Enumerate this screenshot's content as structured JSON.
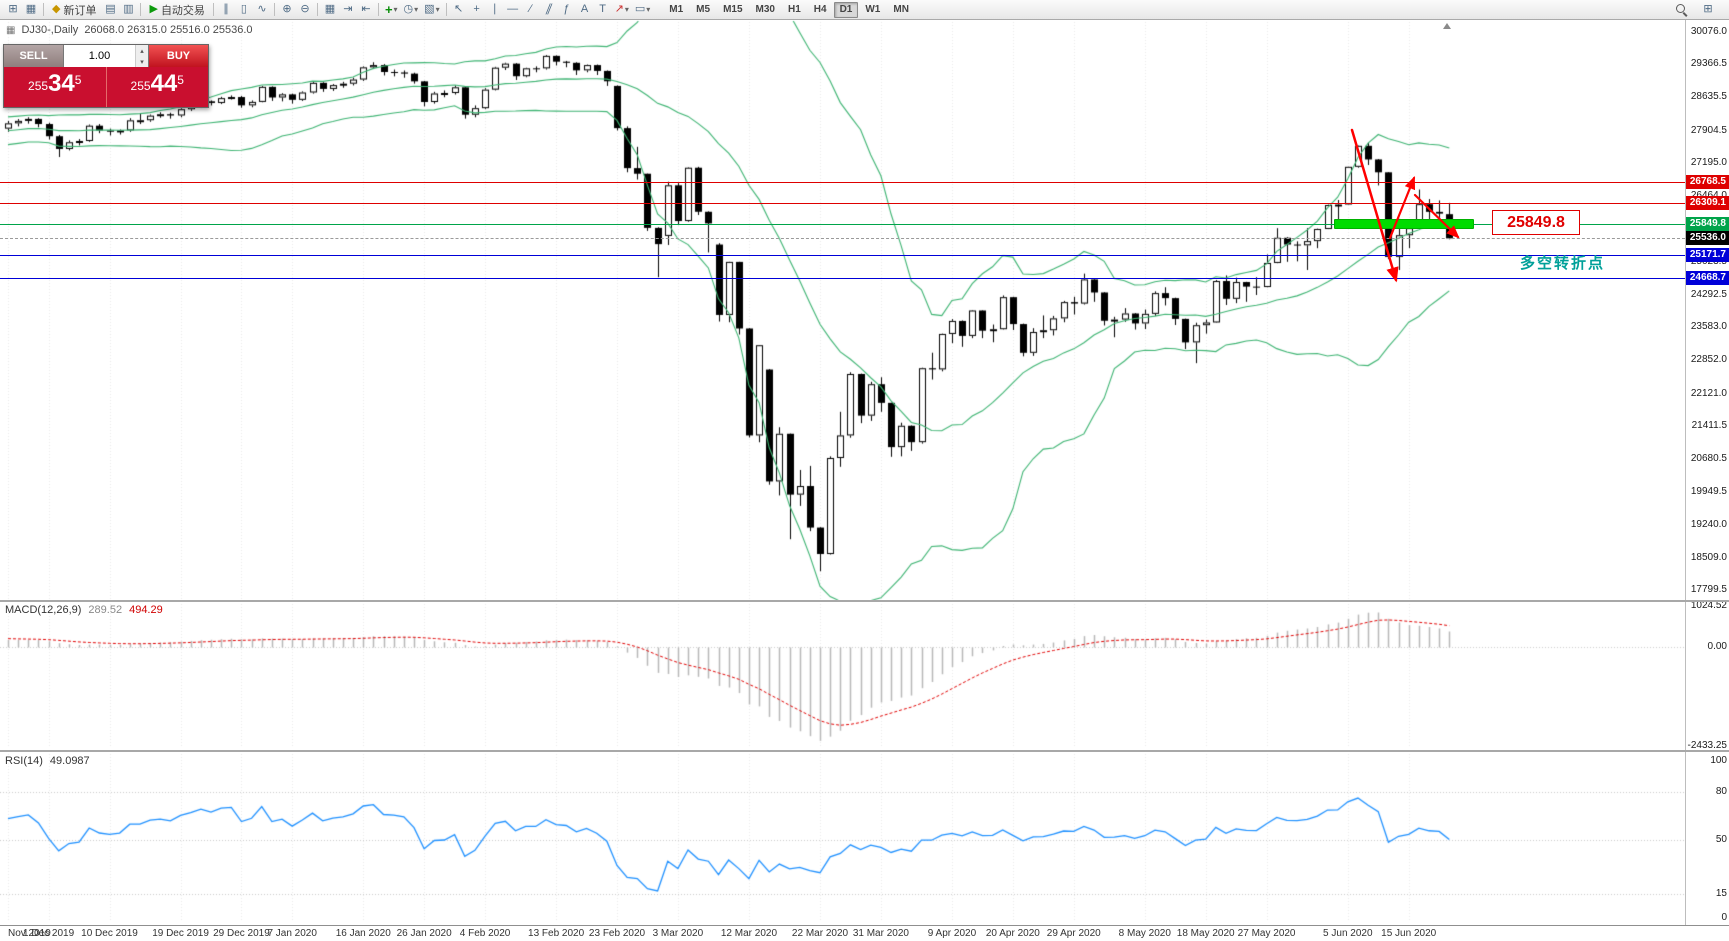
{
  "toolbar": {
    "new_order_label": "新订单",
    "auto_trading_label": "自动交易",
    "timeframes": [
      "M1",
      "M5",
      "M15",
      "M30",
      "H1",
      "H4",
      "D1",
      "W1",
      "MN"
    ],
    "active_timeframe": "D1"
  },
  "icons": {
    "new_chart": "⊞",
    "profiles": "▦",
    "diamond": "◆",
    "market_watch": "▤",
    "terminal": "▥",
    "play": "▶",
    "bar_chart": "∥",
    "candles": "▯",
    "line_chart": "∿",
    "zoom_in": "⊕",
    "zoom_out": "⊖",
    "tile_windows": "▦",
    "auto_scroll": "⇥",
    "chart_shift": "⇤",
    "plus": "+",
    "clock": "◷",
    "template": "▧",
    "cursor": "↖",
    "crosshair": "+",
    "vertical_line": "∣",
    "horizontal_line": "―",
    "trendline": "∕",
    "channel": "∥",
    "fibonacci": "ƒ",
    "text": "A",
    "text_label": "T",
    "arrow": "↗",
    "caret": "▾",
    "shapes": "▭",
    "new_window": "⊞"
  },
  "chart": {
    "symbol_period": "DJ30-,Daily",
    "ohlc_line": "26068.0 26315.0 25516.0 25536.0",
    "annotation": {
      "text": "多空转折点",
      "color": "#00A099"
    },
    "highlight": {
      "label": "25849.8",
      "price": 25849.8,
      "from_index": 131,
      "to_index": 144,
      "bar_color": "#00DC00",
      "label_color": "#E00000"
    },
    "levels": [
      {
        "price": 26768.5,
        "label": "26768.5",
        "color": "#DE0000"
      },
      {
        "price": 26309.1,
        "label": "26309.1",
        "color": "#DE0000"
      },
      {
        "price": 25849.8,
        "label": "25849.8",
        "color": "#00A44A"
      },
      {
        "price": 25171.7,
        "label": "25171.7",
        "color": "#0000D8"
      },
      {
        "price": 24668.7,
        "label": "24668.7",
        "color": "#0000D8"
      }
    ],
    "current_price": {
      "price": 25536.0,
      "label": "25536.0",
      "badge_color": "#000000"
    }
  },
  "trade_panel": {
    "sell_label": "SELL",
    "buy_label": "BUY",
    "volume": "1.00",
    "sell_price": {
      "prefix": "255",
      "big": "34",
      "pip": "5"
    },
    "buy_price": {
      "prefix": "255",
      "big": "44",
      "pip": "5"
    }
  },
  "chart_data": {
    "type": "candlestick",
    "title": "DJ30-,Daily",
    "y_axis_labels": [
      "30076.0",
      "29366.5",
      "28635.5",
      "27904.5",
      "27195.0",
      "26464.0",
      "25754.5",
      "25023.5",
      "24292.5",
      "23583.0",
      "22852.0",
      "22121.0",
      "21411.5",
      "20680.5",
      "19949.5",
      "19240.0",
      "18509.0",
      "17799.5"
    ],
    "x_labels": [
      {
        "text": "Nov 2019",
        "i": 0
      },
      {
        "text": "1 Dec 2019",
        "i": 4
      },
      {
        "text": "10 Dec 2019",
        "i": 10
      },
      {
        "text": "19 Dec 2019",
        "i": 17
      },
      {
        "text": "29 Dec 2019",
        "i": 23
      },
      {
        "text": "7 Jan 2020",
        "i": 28
      },
      {
        "text": "16 Jan 2020",
        "i": 35
      },
      {
        "text": "26 Jan 2020",
        "i": 41
      },
      {
        "text": "4 Feb 2020",
        "i": 47
      },
      {
        "text": "13 Feb 2020",
        "i": 54
      },
      {
        "text": "23 Feb 2020",
        "i": 60
      },
      {
        "text": "3 Mar 2020",
        "i": 66
      },
      {
        "text": "12 Mar 2020",
        "i": 73
      },
      {
        "text": "22 Mar 2020",
        "i": 80
      },
      {
        "text": "31 Mar 2020",
        "i": 86
      },
      {
        "text": "9 Apr 2020",
        "i": 93
      },
      {
        "text": "20 Apr 2020",
        "i": 99
      },
      {
        "text": "29 Apr 2020",
        "i": 105
      },
      {
        "text": "8 May 2020",
        "i": 112
      },
      {
        "text": "18 May 2020",
        "i": 118
      },
      {
        "text": "27 May 2020",
        "i": 124
      },
      {
        "text": "5 Jun 2020",
        "i": 132
      },
      {
        "text": "15 Jun 2020",
        "i": 138
      }
    ],
    "warmup_closes": [
      26573,
      26788,
      26808,
      26820,
      26901,
      27025,
      27186,
      27024,
      26807,
      27001,
      27071,
      26787,
      27046,
      27110,
      26833,
      27347,
      27462,
      27492,
      27783,
      27675,
      27674,
      28004,
      28090,
      28109,
      27681,
      27691,
      27783,
      27821,
      27934,
      28005,
      28036,
      28067,
      28121,
      27822,
      27766,
      27876,
      27897,
      27950
    ],
    "candles": [
      [
        27950,
        28120,
        27880,
        28066
      ],
      [
        28066,
        28160,
        28000,
        28121
      ],
      [
        28121,
        28200,
        28060,
        28164
      ],
      [
        28164,
        28180,
        27980,
        28051
      ],
      [
        28051,
        28080,
        27710,
        27783
      ],
      [
        27783,
        27810,
        27325,
        27503
      ],
      [
        27503,
        27690,
        27470,
        27650
      ],
      [
        27650,
        27720,
        27580,
        27678
      ],
      [
        27678,
        28040,
        27660,
        28015
      ],
      [
        28015,
        28050,
        27850,
        27910
      ],
      [
        27910,
        27950,
        27800,
        27882
      ],
      [
        27882,
        27930,
        27820,
        27911
      ],
      [
        27911,
        28180,
        27880,
        28132
      ],
      [
        28132,
        28290,
        28050,
        28135
      ],
      [
        28135,
        28260,
        28100,
        28236
      ],
      [
        28236,
        28310,
        28190,
        28267
      ],
      [
        28267,
        28300,
        28170,
        28239
      ],
      [
        28239,
        28400,
        28200,
        28377
      ],
      [
        28377,
        28480,
        28340,
        28455
      ],
      [
        28455,
        28580,
        28420,
        28551
      ],
      [
        28551,
        28570,
        28460,
        28515
      ],
      [
        28515,
        28650,
        28490,
        28621
      ],
      [
        28621,
        28680,
        28590,
        28645
      ],
      [
        28645,
        28670,
        28410,
        28462
      ],
      [
        28462,
        28570,
        28420,
        28538
      ],
      [
        28538,
        28890,
        28530,
        28869
      ],
      [
        28869,
        28880,
        28560,
        28635
      ],
      [
        28635,
        28730,
        28550,
        28704
      ],
      [
        28704,
        28720,
        28500,
        28584
      ],
      [
        28584,
        28770,
        28560,
        28745
      ],
      [
        28745,
        28980,
        28720,
        28957
      ],
      [
        28957,
        28970,
        28760,
        28824
      ],
      [
        28824,
        28930,
        28780,
        28907
      ],
      [
        28907,
        28980,
        28850,
        28939
      ],
      [
        28939,
        29070,
        28900,
        29030
      ],
      [
        29030,
        29320,
        29000,
        29298
      ],
      [
        29298,
        29410,
        29260,
        29348
      ],
      [
        29348,
        29370,
        29120,
        29196
      ],
      [
        29196,
        29250,
        29100,
        29186
      ],
      [
        29186,
        29230,
        29070,
        29160
      ],
      [
        29160,
        29180,
        28940,
        28990
      ],
      [
        28990,
        29000,
        28440,
        28536
      ],
      [
        28536,
        28760,
        28500,
        28723
      ],
      [
        28723,
        28790,
        28640,
        28734
      ],
      [
        28734,
        28900,
        28700,
        28859
      ],
      [
        28859,
        28860,
        28170,
        28256
      ],
      [
        28256,
        28460,
        28200,
        28400
      ],
      [
        28400,
        28840,
        28380,
        28808
      ],
      [
        28808,
        29310,
        28790,
        29291
      ],
      [
        29291,
        29400,
        29240,
        29380
      ],
      [
        29380,
        29390,
        29020,
        29103
      ],
      [
        29103,
        29290,
        29080,
        29277
      ],
      [
        29277,
        29320,
        29190,
        29276
      ],
      [
        29276,
        29570,
        29250,
        29551
      ],
      [
        29551,
        29560,
        29340,
        29423
      ],
      [
        29423,
        29440,
        29300,
        29398
      ],
      [
        29398,
        29410,
        29130,
        29232
      ],
      [
        29232,
        29360,
        29190,
        29348
      ],
      [
        29348,
        29360,
        29130,
        29220
      ],
      [
        29220,
        29230,
        28890,
        28992
      ],
      [
        28890,
        28900,
        27910,
        27961
      ],
      [
        27961,
        28000,
        26990,
        27081
      ],
      [
        27081,
        27550,
        26830,
        26958
      ],
      [
        26958,
        26960,
        25700,
        25766
      ],
      [
        25766,
        25780,
        24681,
        25409
      ],
      [
        25590,
        26780,
        25390,
        26703
      ],
      [
        26703,
        26760,
        25830,
        25917
      ],
      [
        25917,
        27100,
        25900,
        27090
      ],
      [
        27090,
        27110,
        26050,
        26121
      ],
      [
        26121,
        26130,
        25226,
        25864
      ],
      [
        25400,
        25430,
        23706,
        23851
      ],
      [
        23851,
        25020,
        23690,
        25018
      ],
      [
        25018,
        25020,
        23420,
        23553
      ],
      [
        23553,
        23560,
        21154,
        21200
      ],
      [
        21200,
        23190,
        21050,
        23185
      ],
      [
        22650,
        22660,
        20116,
        20188
      ],
      [
        20188,
        21380,
        19880,
        21237
      ],
      [
        21237,
        21240,
        18917,
        19898
      ],
      [
        19898,
        20440,
        19650,
        20087
      ],
      [
        20087,
        20530,
        19094,
        19173
      ],
      [
        19173,
        19180,
        18213,
        18591
      ],
      [
        18591,
        20740,
        18580,
        20704
      ],
      [
        20704,
        21720,
        20510,
        21200
      ],
      [
        21200,
        22590,
        21150,
        22552
      ],
      [
        22552,
        22560,
        21470,
        21636
      ],
      [
        21636,
        22380,
        21520,
        22327
      ],
      [
        22327,
        22480,
        21720,
        21917
      ],
      [
        21917,
        21920,
        20730,
        20943
      ],
      [
        20943,
        21480,
        20740,
        21413
      ],
      [
        21413,
        21420,
        20860,
        21052
      ],
      [
        21052,
        22690,
        21020,
        22679
      ],
      [
        22679,
        23020,
        22430,
        22653
      ],
      [
        22653,
        23440,
        22610,
        23433
      ],
      [
        23433,
        23760,
        23230,
        23719
      ],
      [
        23719,
        23730,
        23150,
        23390
      ],
      [
        23390,
        23960,
        23340,
        23949
      ],
      [
        23949,
        23950,
        23340,
        23504
      ],
      [
        23504,
        23640,
        23250,
        23537
      ],
      [
        23537,
        24280,
        23530,
        24242
      ],
      [
        24242,
        24250,
        23520,
        23650
      ],
      [
        23650,
        23660,
        22940,
        23018
      ],
      [
        23018,
        23560,
        22950,
        23475
      ],
      [
        23475,
        23840,
        23340,
        23515
      ],
      [
        23515,
        23830,
        23400,
        23775
      ],
      [
        23775,
        24160,
        23690,
        24133
      ],
      [
        24133,
        24250,
        23860,
        24101
      ],
      [
        24101,
        24760,
        24080,
        24633
      ],
      [
        24633,
        24640,
        24140,
        24345
      ],
      [
        24345,
        24350,
        23620,
        23723
      ],
      [
        23723,
        23810,
        23360,
        23749
      ],
      [
        23749,
        24000,
        23700,
        23883
      ],
      [
        23883,
        23890,
        23530,
        23664
      ],
      [
        23664,
        23970,
        23540,
        23875
      ],
      [
        23875,
        24370,
        23830,
        24331
      ],
      [
        24331,
        24460,
        24060,
        24221
      ],
      [
        24221,
        24230,
        23630,
        23764
      ],
      [
        23764,
        23770,
        23100,
        23247
      ],
      [
        23247,
        23680,
        22790,
        23625
      ],
      [
        23625,
        23750,
        23440,
        23685
      ],
      [
        23685,
        24620,
        23680,
        24597
      ],
      [
        24597,
        24720,
        24070,
        24206
      ],
      [
        24206,
        24670,
        24110,
        24575
      ],
      [
        24575,
        24580,
        24140,
        24474
      ],
      [
        24474,
        24680,
        24290,
        24465
      ],
      [
        24465,
        25180,
        24460,
        24995
      ],
      [
        24995,
        25760,
        24990,
        25548
      ],
      [
        25548,
        25560,
        25020,
        25400
      ],
      [
        25400,
        25470,
        25030,
        25383
      ],
      [
        25383,
        25760,
        24840,
        25475
      ],
      [
        25475,
        25750,
        25320,
        25742
      ],
      [
        25742,
        26280,
        25740,
        26269
      ],
      [
        26269,
        26380,
        25940,
        26281
      ],
      [
        26281,
        27110,
        26280,
        27110
      ],
      [
        27110,
        27580,
        27090,
        27572
      ],
      [
        27572,
        27640,
        27150,
        27272
      ],
      [
        27272,
        27280,
        26700,
        26989
      ],
      [
        26989,
        26990,
        25080,
        25128
      ],
      [
        25128,
        25965,
        24840,
        25605
      ],
      [
        25605,
        25780,
        25320,
        25763
      ],
      [
        25763,
        26610,
        25760,
        26289
      ],
      [
        26289,
        26400,
        25810,
        26119
      ],
      [
        26119,
        26370,
        25900,
        26080
      ],
      [
        26068,
        26315,
        25516,
        25536
      ]
    ],
    "indicators": {
      "bollinger": {
        "period": 20,
        "deviation": 2,
        "color": "#3CB371"
      },
      "macd": {
        "label": "MACD(12,26,9)",
        "value_main": "289.52",
        "value_signal": "494.29",
        "axis_labels": [
          "1024.52",
          "0.00",
          "-2433.25"
        ],
        "histogram_color": "#B8B8B8",
        "signal_color": "#E00000"
      },
      "rsi": {
        "label": "RSI(14)",
        "value": "49.0987",
        "axis_labels": [
          "100",
          "80",
          "50",
          "15",
          "0"
        ],
        "levels": [
          80,
          50,
          15
        ],
        "color": "#1E90FF"
      }
    }
  }
}
